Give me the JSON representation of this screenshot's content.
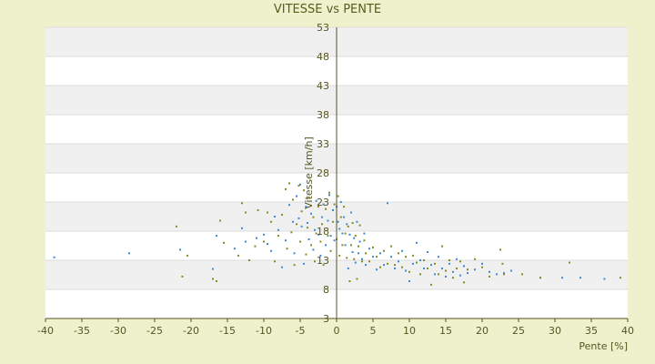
{
  "chart_data": {
    "type": "scatter",
    "title": "VITESSE vs PENTE",
    "xlabel": "Pente [%]",
    "ylabel": "Vitesse [km/h]",
    "xlim": [
      -40,
      40
    ],
    "ylim": [
      3,
      53
    ],
    "x_ticks": [
      -40,
      -35,
      -30,
      -25,
      -20,
      -15,
      -10,
      -5,
      0,
      5,
      10,
      15,
      20,
      25,
      30,
      35,
      40
    ],
    "y_ticks": [
      3,
      8,
      13,
      18,
      23,
      28,
      33,
      38,
      43,
      48,
      53
    ],
    "grid": true,
    "legend": "none",
    "colors": {
      "series_a": "#3a8ad6",
      "series_b": "#8a8a1e",
      "band": "#f0f0f0",
      "axis": "#555522"
    },
    "series": [
      {
        "marker_color": "#3a8ad6",
        "points": [
          [
            -38.8,
            13.5
          ],
          [
            -28.5,
            14.2
          ],
          [
            -21.5,
            14.8
          ],
          [
            -17,
            11.5
          ],
          [
            -16.5,
            17.2
          ],
          [
            -14,
            15
          ],
          [
            -13,
            18.5
          ],
          [
            -12.5,
            16.2
          ],
          [
            -11,
            16.8
          ],
          [
            -10,
            17.4
          ],
          [
            -9.5,
            15.8
          ],
          [
            -9,
            14.6
          ],
          [
            -8.5,
            20.5
          ],
          [
            -8,
            18.2
          ],
          [
            -7.5,
            11.8
          ],
          [
            -7,
            16.4
          ],
          [
            -6.5,
            22.5
          ],
          [
            -6,
            19.6
          ],
          [
            -5.8,
            14.2
          ],
          [
            -5.5,
            24
          ],
          [
            -5.2,
            20.2
          ],
          [
            -5,
            26
          ],
          [
            -4.8,
            18.8
          ],
          [
            -4.5,
            12.4
          ],
          [
            -4.2,
            22.2
          ],
          [
            -4,
            19.4
          ],
          [
            -3.8,
            16.6
          ],
          [
            -3.5,
            21
          ],
          [
            -3.2,
            14.8
          ],
          [
            -3,
            18.2
          ],
          [
            -2.8,
            23.2
          ],
          [
            -2.5,
            17.4
          ],
          [
            -2.2,
            13.8
          ],
          [
            -2,
            20.4
          ],
          [
            -1.8,
            22.6
          ],
          [
            -1.5,
            15.6
          ],
          [
            -1.2,
            19.8
          ],
          [
            -1,
            24.2
          ],
          [
            -0.8,
            17.2
          ],
          [
            -0.5,
            21.6
          ],
          [
            -0.3,
            16.4
          ],
          [
            0,
            22.2
          ],
          [
            0.2,
            19.6
          ],
          [
            0.4,
            18.4
          ],
          [
            0.6,
            23
          ],
          [
            0.8,
            17.6
          ],
          [
            1,
            20.4
          ],
          [
            1.2,
            15.6
          ],
          [
            1.4,
            19.2
          ],
          [
            1.6,
            11.6
          ],
          [
            1.8,
            17.4
          ],
          [
            2,
            21.2
          ],
          [
            2.2,
            14.4
          ],
          [
            2.4,
            16.8
          ],
          [
            2.6,
            12.6
          ],
          [
            2.8,
            19.6
          ],
          [
            3,
            14.2
          ],
          [
            3.2,
            16.2
          ],
          [
            3.5,
            13.2
          ],
          [
            3.8,
            17.6
          ],
          [
            4,
            12.2
          ],
          [
            4.5,
            15
          ],
          [
            5,
            13.6
          ],
          [
            5.5,
            11.4
          ],
          [
            6,
            14.2
          ],
          [
            6.5,
            12.2
          ],
          [
            7,
            22.8
          ],
          [
            7.5,
            13.6
          ],
          [
            8,
            11.6
          ],
          [
            8.5,
            12.8
          ],
          [
            9,
            14.6
          ],
          [
            9.5,
            11.2
          ],
          [
            10,
            9.4
          ],
          [
            10.5,
            12.4
          ],
          [
            11,
            16
          ],
          [
            11.5,
            13
          ],
          [
            12,
            11.6
          ],
          [
            12.5,
            14.4
          ],
          [
            13,
            12.2
          ],
          [
            13.5,
            10.6
          ],
          [
            14,
            13.6
          ],
          [
            14.5,
            11.6
          ],
          [
            15,
            10.2
          ],
          [
            15.5,
            12.4
          ],
          [
            16,
            11
          ],
          [
            16.5,
            13.2
          ],
          [
            17,
            10.4
          ],
          [
            17.5,
            12
          ],
          [
            18,
            10.8
          ],
          [
            19,
            11.4
          ],
          [
            20,
            12.4
          ],
          [
            21,
            11
          ],
          [
            22,
            10.6
          ],
          [
            23,
            10.8
          ],
          [
            24,
            11.2
          ],
          [
            28,
            10
          ],
          [
            31,
            10
          ],
          [
            33.5,
            10
          ],
          [
            36.8,
            9.8
          ]
        ]
      },
      {
        "marker_color": "#8a8a1e",
        "points": [
          [
            -22,
            18.8
          ],
          [
            -21.2,
            10.2
          ],
          [
            -20.5,
            13.8
          ],
          [
            -17,
            9.8
          ],
          [
            -16.5,
            9.4
          ],
          [
            -16,
            19.8
          ],
          [
            -15.5,
            16
          ],
          [
            -13.5,
            13.8
          ],
          [
            -13,
            22.8
          ],
          [
            -12.5,
            21.2
          ],
          [
            -12,
            13
          ],
          [
            -11.2,
            15.4
          ],
          [
            -10.8,
            21.6
          ],
          [
            -10,
            16.2
          ],
          [
            -9.5,
            21.2
          ],
          [
            -9,
            19.6
          ],
          [
            -8.5,
            12.8
          ],
          [
            -8,
            17.2
          ],
          [
            -7.5,
            20.8
          ],
          [
            -7,
            25.2
          ],
          [
            -6.8,
            15
          ],
          [
            -6.5,
            26.2
          ],
          [
            -6.2,
            17.8
          ],
          [
            -6,
            23.4
          ],
          [
            -5.8,
            12.2
          ],
          [
            -5.5,
            19.2
          ],
          [
            -5.2,
            25.8
          ],
          [
            -5,
            16.2
          ],
          [
            -4.8,
            21.4
          ],
          [
            -4.5,
            25
          ],
          [
            -4.2,
            14
          ],
          [
            -4,
            18.6
          ],
          [
            -3.8,
            23.8
          ],
          [
            -3.5,
            15.6
          ],
          [
            -3.2,
            20.4
          ],
          [
            -3,
            12.8
          ],
          [
            -2.8,
            17.6
          ],
          [
            -2.5,
            22.2
          ],
          [
            -2.2,
            16.2
          ],
          [
            -2,
            19.2
          ],
          [
            -1.8,
            12.2
          ],
          [
            -1.5,
            21.8
          ],
          [
            -1.2,
            17.2
          ],
          [
            -1,
            24.6
          ],
          [
            -0.8,
            14.6
          ],
          [
            -0.5,
            19.6
          ],
          [
            -0.3,
            22.6
          ],
          [
            0,
            16.6
          ],
          [
            0.2,
            24
          ],
          [
            0.4,
            13.8
          ],
          [
            0.6,
            20.4
          ],
          [
            0.8,
            15.6
          ],
          [
            1,
            22.2
          ],
          [
            1.2,
            17.6
          ],
          [
            1.4,
            13.4
          ],
          [
            1.6,
            18.8
          ],
          [
            1.8,
            9.4
          ],
          [
            2,
            15.6
          ],
          [
            2.2,
            19.4
          ],
          [
            2.4,
            13.2
          ],
          [
            2.6,
            17.2
          ],
          [
            2.8,
            9.8
          ],
          [
            3,
            15.4
          ],
          [
            3.2,
            19
          ],
          [
            3.5,
            12.8
          ],
          [
            3.8,
            16.4
          ],
          [
            4,
            14.2
          ],
          [
            4.5,
            12.8
          ],
          [
            5,
            15.2
          ],
          [
            5.5,
            13.6
          ],
          [
            6,
            11.8
          ],
          [
            6.5,
            14.6
          ],
          [
            7,
            12.4
          ],
          [
            7.5,
            15.4
          ],
          [
            8,
            12.2
          ],
          [
            8.5,
            14.2
          ],
          [
            9,
            11.8
          ],
          [
            9.5,
            13.6
          ],
          [
            10,
            11
          ],
          [
            10.5,
            13.8
          ],
          [
            11,
            12.6
          ],
          [
            11.5,
            10.6
          ],
          [
            12,
            13
          ],
          [
            12.5,
            11.6
          ],
          [
            13,
            8.8
          ],
          [
            13.5,
            12.4
          ],
          [
            14,
            10.6
          ],
          [
            14.5,
            15.4
          ],
          [
            15,
            11.2
          ],
          [
            15.5,
            13
          ],
          [
            16,
            10
          ],
          [
            16.5,
            11.6
          ],
          [
            17,
            12.8
          ],
          [
            17.5,
            9.2
          ],
          [
            18,
            11.4
          ],
          [
            19,
            13.2
          ],
          [
            20,
            11.8
          ],
          [
            21,
            10.2
          ],
          [
            22.5,
            14.8
          ],
          [
            22.8,
            12.4
          ],
          [
            23,
            10.6
          ],
          [
            25.5,
            10.6
          ],
          [
            28,
            10
          ],
          [
            32,
            12.6
          ],
          [
            39,
            10
          ]
        ]
      }
    ]
  }
}
